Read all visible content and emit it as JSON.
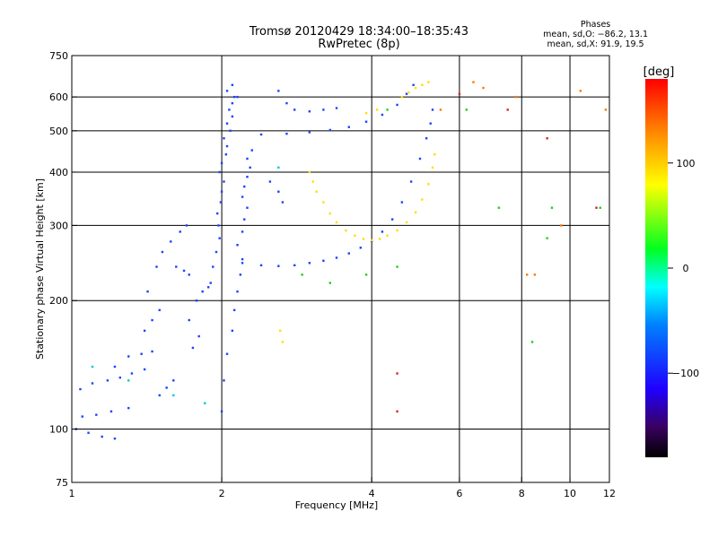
{
  "header": {
    "title_line1": "Tromsø 20120429 18:34:00–18:35:43",
    "title_line2": "RwPretec (8p)"
  },
  "phases": {
    "heading": "Phases",
    "line_o": "mean, sd,O: −86.2, 13.1",
    "line_x": "mean, sd,X:  91.9, 19.5"
  },
  "colorbar": {
    "label": "[deg]",
    "ticks": [
      {
        "value": 100,
        "label": "100"
      },
      {
        "value": 0,
        "label": "0"
      },
      {
        "value": -100,
        "label": "−100"
      }
    ],
    "range": [
      -180,
      180
    ]
  },
  "chart_data": {
    "type": "scatter",
    "xlabel": "Frequency [MHz]",
    "ylabel": "Stationary phase Virtual Height [km]",
    "x_scale": "log",
    "y_scale": "log",
    "xlim": [
      1,
      12
    ],
    "ylim": [
      75,
      750
    ],
    "x_ticks": [
      {
        "value": 1,
        "label": "1"
      },
      {
        "value": 2,
        "label": "2"
      },
      {
        "value": 4,
        "label": "4"
      },
      {
        "value": 6,
        "label": "6"
      },
      {
        "value": 8,
        "label": "8"
      },
      {
        "value": 10,
        "label": "10"
      },
      {
        "value": 12,
        "label": "12"
      }
    ],
    "y_ticks": [
      {
        "value": 75,
        "label": "75"
      },
      {
        "value": 100,
        "label": "100"
      },
      {
        "value": 200,
        "label": "200"
      },
      {
        "value": 300,
        "label": "300"
      },
      {
        "value": 400,
        "label": "400"
      },
      {
        "value": 500,
        "label": "500"
      },
      {
        "value": 600,
        "label": "600"
      },
      {
        "value": 750,
        "label": "750"
      }
    ],
    "grid_x": [
      2,
      4,
      6,
      8,
      10
    ],
    "grid_y": [
      100,
      200,
      300,
      400,
      500,
      600
    ],
    "grid": true,
    "color_scale": "phase (deg), rainbow",
    "series": [
      {
        "mode": "O",
        "color": "#1a44ff",
        "points": [
          [
            1.02,
            100
          ],
          [
            1.08,
            98
          ],
          [
            1.15,
            96
          ],
          [
            1.22,
            95
          ],
          [
            1.05,
            107
          ],
          [
            1.12,
            108
          ],
          [
            1.2,
            110
          ],
          [
            1.3,
            112
          ],
          [
            1.04,
            124
          ],
          [
            1.1,
            128
          ],
          [
            1.18,
            130
          ],
          [
            1.25,
            132
          ],
          [
            1.32,
            135
          ],
          [
            1.4,
            138
          ],
          [
            1.22,
            140
          ],
          [
            1.3,
            148
          ],
          [
            1.38,
            150
          ],
          [
            1.45,
            152
          ],
          [
            1.5,
            120
          ],
          [
            1.55,
            125
          ],
          [
            1.6,
            130
          ],
          [
            1.4,
            170
          ],
          [
            1.45,
            180
          ],
          [
            1.5,
            190
          ],
          [
            1.42,
            210
          ],
          [
            1.48,
            240
          ],
          [
            1.52,
            260
          ],
          [
            1.58,
            275
          ],
          [
            1.65,
            290
          ],
          [
            1.7,
            300
          ],
          [
            1.62,
            240
          ],
          [
            1.68,
            235
          ],
          [
            1.72,
            230
          ],
          [
            1.75,
            155
          ],
          [
            1.8,
            165
          ],
          [
            1.72,
            180
          ],
          [
            1.78,
            200
          ],
          [
            1.83,
            210
          ],
          [
            1.88,
            215
          ],
          [
            1.9,
            220
          ],
          [
            1.92,
            240
          ],
          [
            1.95,
            260
          ],
          [
            1.98,
            280
          ],
          [
            1.97,
            300
          ],
          [
            1.96,
            320
          ],
          [
            1.99,
            340
          ],
          [
            2.0,
            360
          ],
          [
            2.02,
            380
          ],
          [
            1.98,
            400
          ],
          [
            2.0,
            420
          ],
          [
            2.04,
            440
          ],
          [
            2.05,
            460
          ],
          [
            2.02,
            480
          ],
          [
            2.08,
            500
          ],
          [
            2.05,
            520
          ],
          [
            2.1,
            540
          ],
          [
            2.07,
            560
          ],
          [
            2.1,
            580
          ],
          [
            2.12,
            600
          ],
          [
            2.05,
            620
          ],
          [
            2.1,
            640
          ],
          [
            2.15,
            600
          ],
          [
            2.0,
            110
          ],
          [
            2.02,
            130
          ],
          [
            2.05,
            150
          ],
          [
            2.1,
            170
          ],
          [
            2.12,
            190
          ],
          [
            2.15,
            210
          ],
          [
            2.18,
            230
          ],
          [
            2.2,
            250
          ],
          [
            2.15,
            270
          ],
          [
            2.2,
            290
          ],
          [
            2.22,
            310
          ],
          [
            2.25,
            330
          ],
          [
            2.2,
            350
          ],
          [
            2.22,
            370
          ],
          [
            2.25,
            390
          ],
          [
            2.28,
            410
          ],
          [
            2.25,
            430
          ],
          [
            2.3,
            450
          ],
          [
            2.2,
            245
          ],
          [
            2.4,
            242
          ],
          [
            2.6,
            241
          ],
          [
            2.8,
            242
          ],
          [
            3.0,
            245
          ],
          [
            3.2,
            248
          ],
          [
            3.4,
            252
          ],
          [
            3.6,
            258
          ],
          [
            3.8,
            266
          ],
          [
            4.0,
            276
          ],
          [
            4.2,
            290
          ],
          [
            4.4,
            310
          ],
          [
            4.6,
            340
          ],
          [
            4.8,
            380
          ],
          [
            5.0,
            430
          ],
          [
            5.15,
            480
          ],
          [
            5.25,
            520
          ],
          [
            5.3,
            560
          ],
          [
            2.4,
            490
          ],
          [
            2.7,
            492
          ],
          [
            3.0,
            496
          ],
          [
            3.3,
            502
          ],
          [
            3.6,
            510
          ],
          [
            3.9,
            525
          ],
          [
            4.2,
            545
          ],
          [
            4.5,
            575
          ],
          [
            4.7,
            610
          ],
          [
            4.85,
            640
          ],
          [
            2.6,
            620
          ],
          [
            2.7,
            580
          ],
          [
            2.8,
            560
          ],
          [
            3.0,
            555
          ],
          [
            3.2,
            560
          ],
          [
            3.4,
            565
          ],
          [
            2.5,
            380
          ],
          [
            2.6,
            360
          ],
          [
            2.65,
            340
          ]
        ]
      },
      {
        "mode": "X",
        "color": "#ffdd00",
        "points": [
          [
            3.0,
            400
          ],
          [
            3.05,
            380
          ],
          [
            3.1,
            360
          ],
          [
            3.2,
            340
          ],
          [
            3.3,
            320
          ],
          [
            3.4,
            305
          ],
          [
            3.55,
            292
          ],
          [
            3.7,
            284
          ],
          [
            3.85,
            279
          ],
          [
            4.0,
            277
          ],
          [
            4.15,
            279
          ],
          [
            4.3,
            284
          ],
          [
            4.5,
            292
          ],
          [
            4.7,
            305
          ],
          [
            4.9,
            322
          ],
          [
            5.05,
            345
          ],
          [
            5.2,
            375
          ],
          [
            5.3,
            410
          ],
          [
            5.35,
            440
          ],
          [
            4.6,
            600
          ],
          [
            4.75,
            615
          ],
          [
            4.9,
            630
          ],
          [
            5.05,
            640
          ],
          [
            5.2,
            650
          ],
          [
            3.9,
            550
          ],
          [
            4.1,
            560
          ],
          [
            2.65,
            160
          ],
          [
            2.62,
            170
          ]
        ]
      },
      {
        "mode": "misc",
        "color": "#22cc22",
        "points": [
          [
            2.9,
            230
          ],
          [
            3.3,
            220
          ],
          [
            3.9,
            230
          ],
          [
            4.5,
            240
          ],
          [
            6.2,
            560
          ],
          [
            7.2,
            330
          ],
          [
            9.0,
            280
          ],
          [
            9.2,
            330
          ],
          [
            11.5,
            330
          ],
          [
            8.4,
            160
          ],
          [
            4.3,
            560
          ]
        ]
      },
      {
        "mode": "misc",
        "color": "#00cccc",
        "points": [
          [
            1.1,
            140
          ],
          [
            1.3,
            130
          ],
          [
            1.6,
            120
          ],
          [
            1.85,
            115
          ],
          [
            2.6,
            410
          ]
        ]
      },
      {
        "mode": "misc",
        "color": "#ff7700",
        "points": [
          [
            6.4,
            650
          ],
          [
            6.7,
            630
          ],
          [
            7.8,
            600
          ],
          [
            8.5,
            230
          ],
          [
            9.6,
            300
          ],
          [
            10.5,
            620
          ],
          [
            11.8,
            560
          ],
          [
            5.5,
            560
          ],
          [
            8.2,
            230
          ]
        ]
      },
      {
        "mode": "misc",
        "color": "#dd2222",
        "points": [
          [
            6.0,
            610
          ],
          [
            7.5,
            560
          ],
          [
            9.0,
            480
          ],
          [
            4.5,
            135
          ],
          [
            4.5,
            110
          ],
          [
            11.3,
            330
          ]
        ]
      }
    ]
  }
}
